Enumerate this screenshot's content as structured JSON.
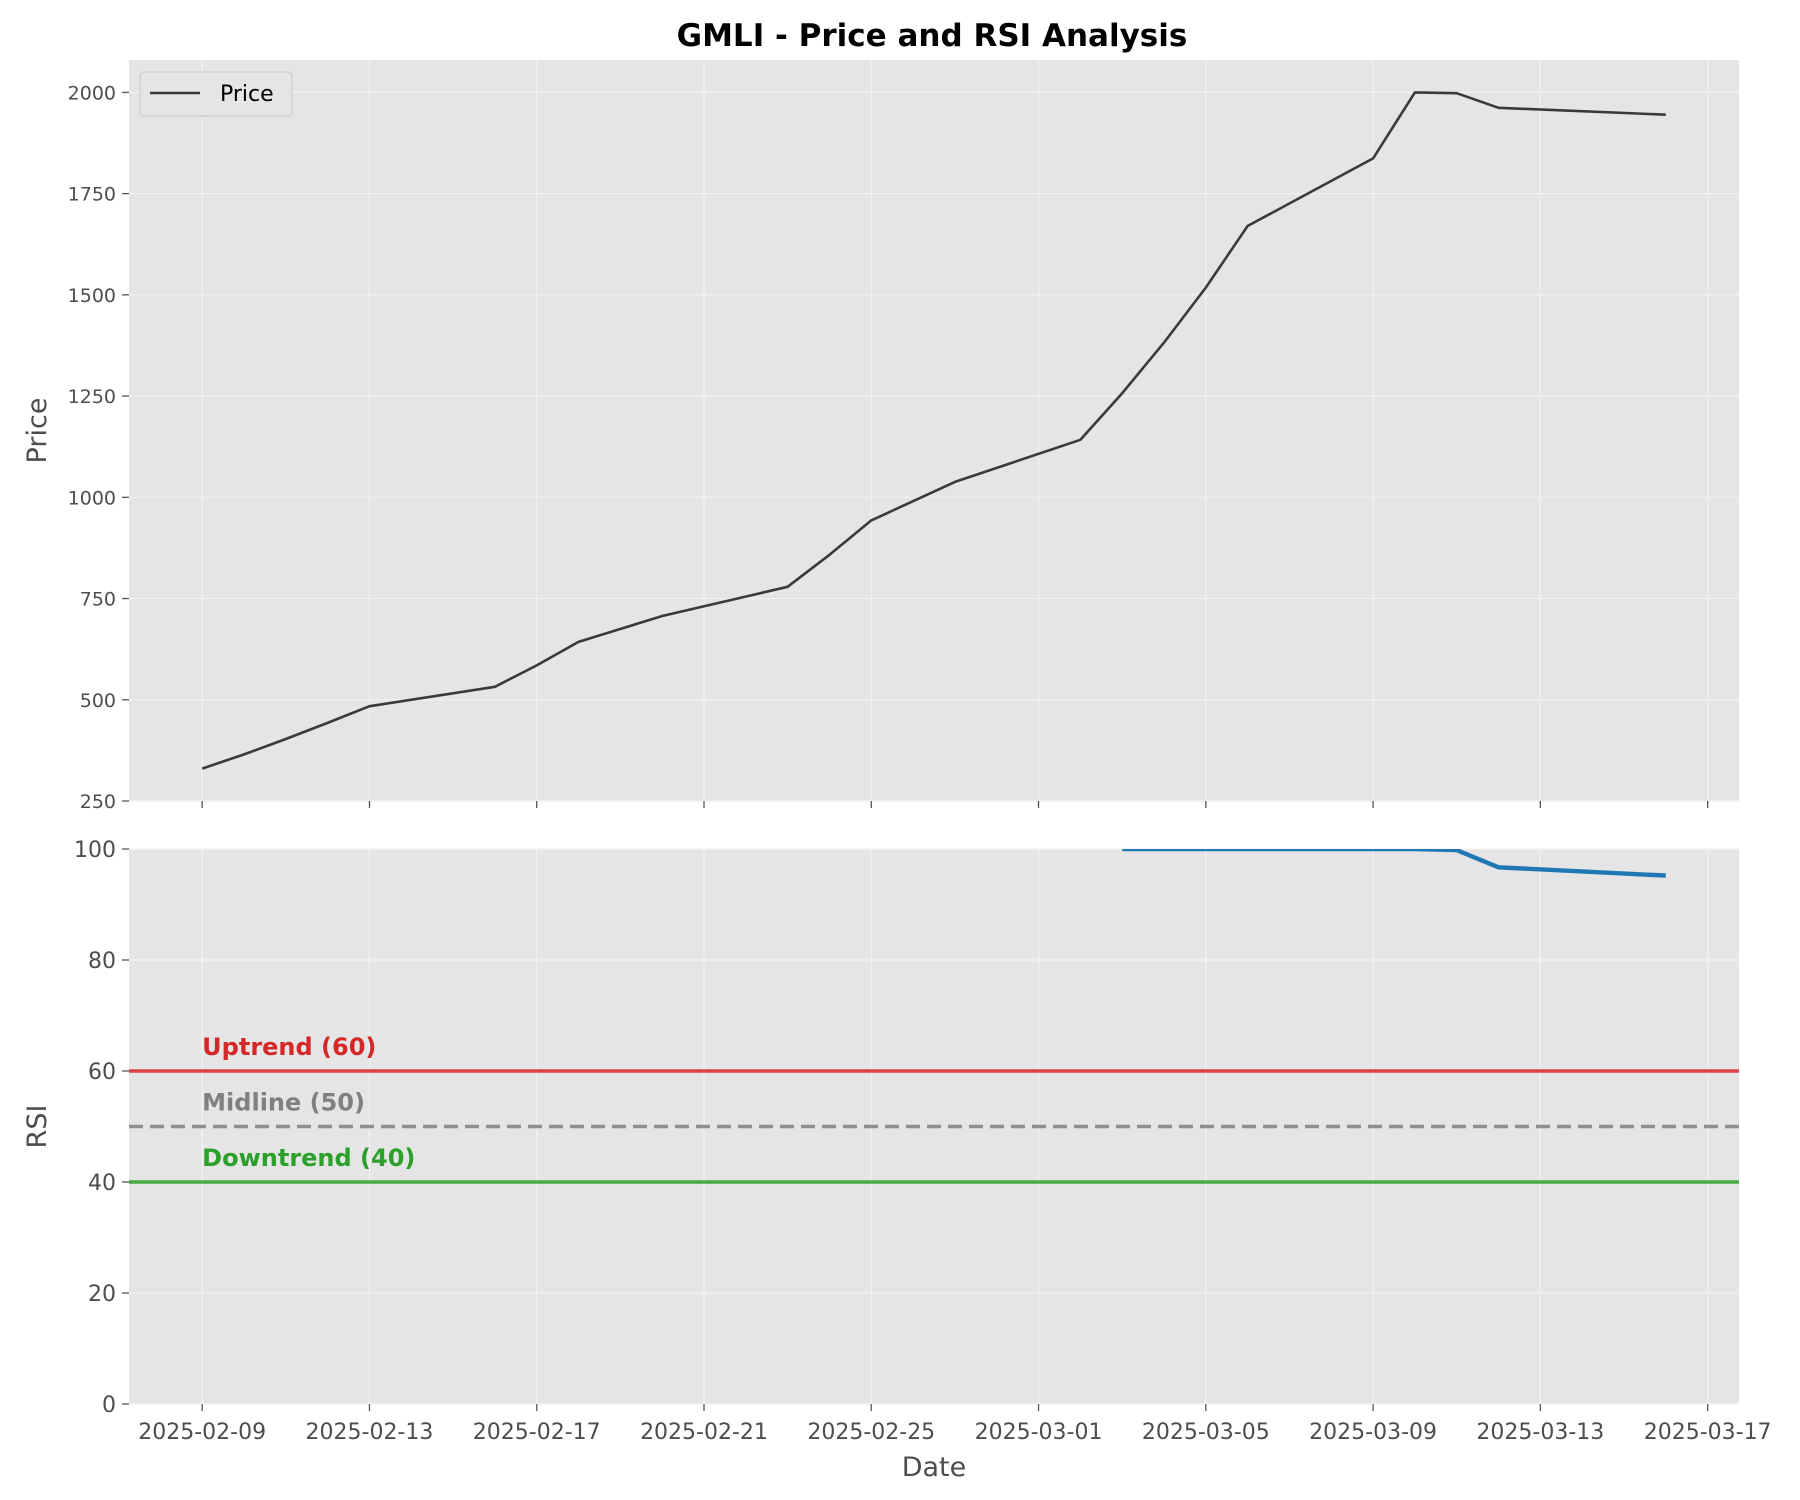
{
  "chart_data": {
    "type": "line",
    "title": "GMLI - Price and RSI Analysis",
    "xlabel": "Date",
    "x_ticks": [
      "2025-02-09",
      "2025-02-13",
      "2025-02-17",
      "2025-02-21",
      "2025-02-25",
      "2025-03-01",
      "2025-03-05",
      "2025-03-09",
      "2025-03-13",
      "2025-03-17"
    ],
    "xlim": [
      "2025-02-07T06:00",
      "2025-03-17T18:00"
    ],
    "grid": true,
    "colors": {
      "plot_bg": "#e5e5e5",
      "grid": "#f2f2f2",
      "price": "#3a3a3a",
      "rsi": "#1f77b4",
      "uptrend": "#d62728",
      "midline": "#808080",
      "downtrend": "#2ca02c"
    },
    "panels": [
      {
        "name": "price",
        "ylabel": "Price",
        "ylim": [
          250,
          2080
        ],
        "y_ticks": [
          250,
          500,
          750,
          1000,
          1250,
          1500,
          1750,
          2000
        ],
        "legend": {
          "position": "top-left",
          "entries": [
            "Price"
          ]
        },
        "series": [
          {
            "name": "Price",
            "x": [
              "2025-02-09",
              "2025-02-10",
              "2025-02-11",
              "2025-02-12",
              "2025-02-13",
              "2025-02-16",
              "2025-02-17",
              "2025-02-18",
              "2025-02-20",
              "2025-02-23",
              "2025-02-24",
              "2025-02-25",
              "2025-02-27",
              "2025-03-02",
              "2025-03-03",
              "2025-03-04",
              "2025-03-05",
              "2025-03-06",
              "2025-03-09",
              "2025-03-10",
              "2025-03-11",
              "2025-03-12",
              "2025-03-16"
            ],
            "values": [
              330,
              365,
              403,
              443,
              484,
              532,
              585,
              643,
              707,
              779,
              858,
              943,
              1038,
              1142,
              1257,
              1382,
              1518,
              1670,
              1837,
              2000,
              1998,
              1962,
              1945
            ]
          }
        ]
      },
      {
        "name": "rsi",
        "ylabel": "RSI",
        "ylim": [
          0,
          100
        ],
        "y_ticks": [
          0,
          20,
          40,
          60,
          80,
          100
        ],
        "series": [
          {
            "name": "RSI",
            "x": [
              "2025-03-03",
              "2025-03-04",
              "2025-03-05",
              "2025-03-06",
              "2025-03-09",
              "2025-03-10",
              "2025-03-11",
              "2025-03-12",
              "2025-03-16"
            ],
            "values": [
              100,
              100,
              100,
              100,
              100,
              100,
              99.8,
              96.7,
              95.2
            ]
          }
        ],
        "reference_lines": [
          {
            "label": "Uptrend (60)",
            "value": 60,
            "style": "solid",
            "color_key": "uptrend"
          },
          {
            "label": "Midline (50)",
            "value": 50,
            "style": "dashed",
            "color_key": "midline"
          },
          {
            "label": "Downtrend (40)",
            "value": 40,
            "style": "solid",
            "color_key": "downtrend"
          }
        ]
      }
    ]
  }
}
